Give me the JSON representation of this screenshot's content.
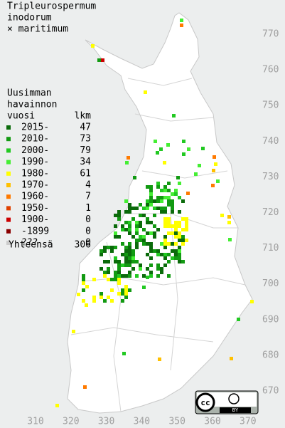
{
  "header": {
    "title": [
      "Tripleurospermum",
      "inodorum",
      "× maritimum"
    ]
  },
  "legend": {
    "heading": [
      "Uusimman",
      "havainnon",
      "vuosi"
    ],
    "count_heading": "lkm",
    "rows": [
      {
        "label": "2015-",
        "count": 47,
        "color": "#0b6b0b"
      },
      {
        "label": "2010-",
        "count": 73,
        "color": "#129a12"
      },
      {
        "label": "2000-",
        "count": 79,
        "color": "#22c922"
      },
      {
        "label": "1990-",
        "count": 34,
        "color": "#44ee33"
      },
      {
        "label": "1980-",
        "count": 61,
        "color": "#ffff00"
      },
      {
        "label": "1970-",
        "count": 4,
        "color": "#ffc000"
      },
      {
        "label": "1960-",
        "count": 7,
        "color": "#ff7a00"
      },
      {
        "label": "1950-",
        "count": 1,
        "color": "#e04000"
      },
      {
        "label": "1900-",
        "count": 0,
        "color": "#cc0000"
      },
      {
        "label": "-1899",
        "count": 0,
        "color": "#8a0000"
      },
      {
        "label": "???",
        "count": 0,
        "color": "#cccccc"
      }
    ],
    "total_label": "Yhteensä",
    "total": 306
  },
  "axes": {
    "yticks": [
      770,
      760,
      750,
      740,
      730,
      720,
      710,
      700,
      690,
      680,
      670
    ],
    "xticks": [
      310,
      320,
      330,
      340,
      350,
      360,
      370
    ]
  },
  "license": {
    "badge": "BY"
  }
}
